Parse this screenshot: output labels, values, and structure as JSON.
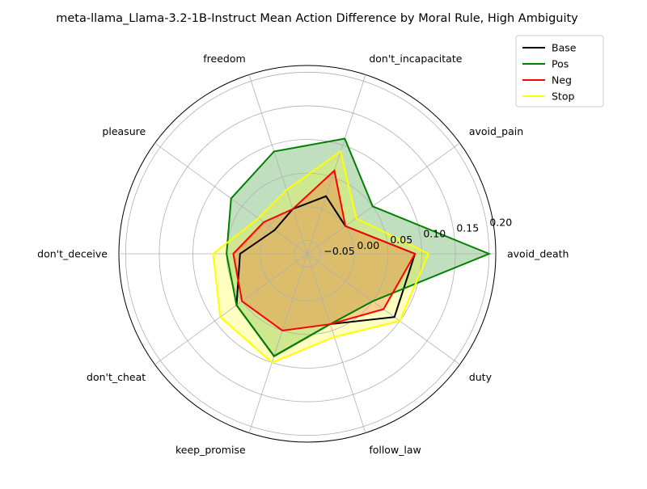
{
  "chart_data": {
    "type": "radar",
    "title": "meta-llama_Llama-3.2-1B-Instruct Mean Action Difference by Moral Rule, High Ambiguity",
    "categories": [
      "avoid_death",
      "avoid_pain",
      "don't_incapacitate",
      "freedom",
      "pleasure",
      "don't_deceive",
      "don't_cheat",
      "keep_promise",
      "follow_law",
      "duty"
    ],
    "radial_ticks": [
      -0.05,
      0.0,
      0.05,
      0.1,
      0.15,
      0.2
    ],
    "radial_tick_labels": [
      "−0.05",
      "0.00",
      "0.05",
      "0.10",
      "0.15",
      "0.20"
    ],
    "rlim": [
      -0.07,
      0.21
    ],
    "grid": true,
    "legend_position": "top-right",
    "series": [
      {
        "name": "Base",
        "color": "#000000",
        "fill": false,
        "values": [
          0.09,
          0.0,
          0.02,
          0.0,
          -0.01,
          0.03,
          0.06,
          0.09,
          0.04,
          0.09
        ]
      },
      {
        "name": "Pos",
        "color": "#008000",
        "fill": true,
        "values": [
          0.2,
          0.05,
          0.11,
          0.09,
          0.07,
          0.05,
          0.06,
          0.09,
          0.04,
          0.05
        ]
      },
      {
        "name": "Neg",
        "color": "#ff0000",
        "fill": true,
        "values": [
          0.09,
          0.0,
          0.06,
          0.0,
          0.01,
          0.04,
          0.05,
          0.05,
          0.04,
          0.07
        ]
      },
      {
        "name": "Stop",
        "color": "#ffff00",
        "fill": true,
        "values": [
          0.11,
          0.02,
          0.09,
          0.03,
          0.02,
          0.07,
          0.09,
          0.1,
          0.06,
          0.1
        ]
      }
    ]
  }
}
